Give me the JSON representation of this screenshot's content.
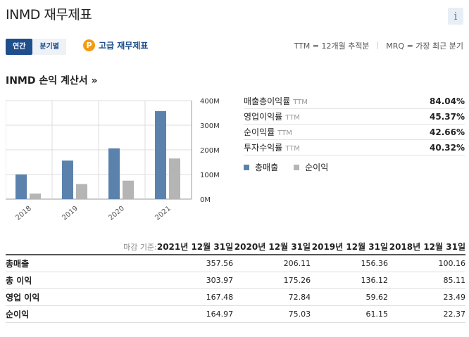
{
  "page": {
    "title": "INMD 재무제표",
    "info_glyph": "i"
  },
  "tabs": [
    {
      "label": "연간",
      "active": true
    },
    {
      "label": "분기별",
      "active": false
    }
  ],
  "premium": {
    "icon_glyph": "P",
    "label": "고급 재무제표"
  },
  "notes": {
    "ttm": "TTM = 12개월 추적분",
    "mrq": "MRQ = 가장 최근 분기"
  },
  "section_title": "INMD 손익 계산서 »",
  "ratios": [
    {
      "label": "매출총이익률",
      "suffix": "TTM",
      "value": "84.04%"
    },
    {
      "label": "영업이익률",
      "suffix": "TTM",
      "value": "45.37%"
    },
    {
      "label": "순이익률",
      "suffix": "TTM",
      "value": "42.66%"
    },
    {
      "label": "투자수익률",
      "suffix": "TTM",
      "value": "40.32%"
    }
  ],
  "colors": {
    "revenue": "#5b82ad",
    "net": "#b5b5b5",
    "accent": "#1f4e8c"
  },
  "chart_data": {
    "type": "bar",
    "categories": [
      "2018",
      "2019",
      "2020",
      "2021"
    ],
    "series": [
      {
        "name": "총매출",
        "values": [
          100.16,
          156.36,
          206.11,
          357.56
        ]
      },
      {
        "name": "순이익",
        "values": [
          22.37,
          61.15,
          75.03,
          164.97
        ]
      }
    ],
    "ylim": [
      0,
      400
    ],
    "y_ticks": [
      "0M",
      "100M",
      "200M",
      "300M",
      "400M"
    ],
    "grid": true,
    "xlabel": "",
    "ylabel": ""
  },
  "table": {
    "basis_label": "마감 기준:",
    "columns": [
      "2021년 12월 31일",
      "2020년 12월 31일",
      "2019년 12월 31일",
      "2018년 12월 31일"
    ],
    "rows": [
      {
        "label": "총매출",
        "values": [
          "357.56",
          "206.11",
          "156.36",
          "100.16"
        ]
      },
      {
        "label": "총 이익",
        "values": [
          "303.97",
          "175.26",
          "136.12",
          "85.11"
        ]
      },
      {
        "label": "영업 이익",
        "values": [
          "167.48",
          "72.84",
          "59.62",
          "23.49"
        ]
      },
      {
        "label": "순이익",
        "values": [
          "164.97",
          "75.03",
          "61.15",
          "22.37"
        ]
      }
    ]
  }
}
